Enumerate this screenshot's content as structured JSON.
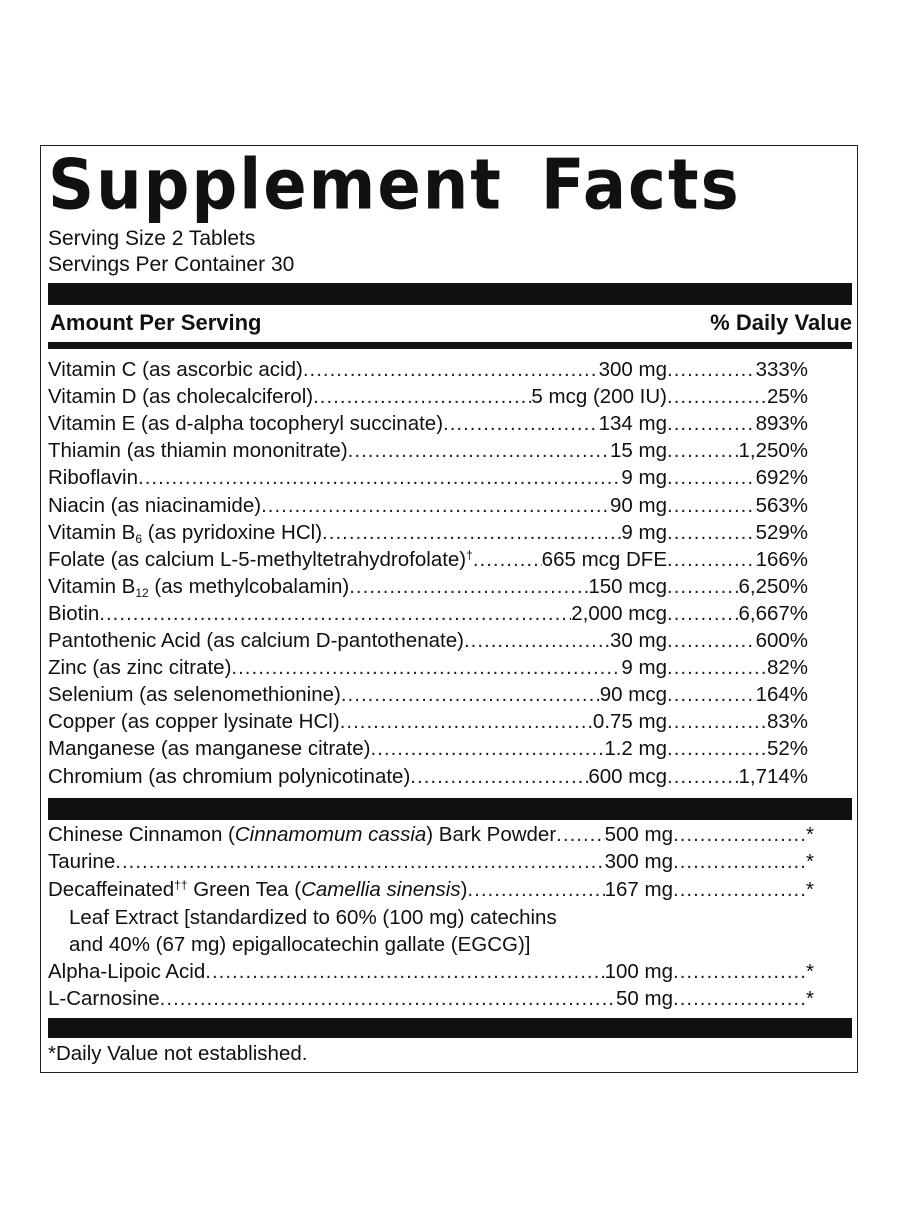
{
  "label": {
    "title_word1": "Supplement",
    "title_word2": "Facts",
    "serving_size": "Serving Size 2 Tablets",
    "servings_per_container": "Servings Per Container 30",
    "header_left": "Amount Per Serving",
    "header_right": "% Daily Value",
    "footnote": "*Daily Value not established."
  },
  "vitamins": [
    {
      "name": "Vitamin C (as ascorbic acid)",
      "amount": "300 mg",
      "dv": "333%"
    },
    {
      "name": "Vitamin D (as cholecalciferol)",
      "amount": "5 mcg (200 IU)",
      "dv": "25%"
    },
    {
      "name": "Vitamin E (as d-alpha tocopheryl succinate)",
      "amount": "134 mg",
      "dv": "893%"
    },
    {
      "name": "Thiamin (as thiamin mononitrate)",
      "amount": "15 mg",
      "dv": "1,250%"
    },
    {
      "name": "Riboflavin",
      "amount": "9 mg",
      "dv": "692%"
    },
    {
      "name": "Niacin (as niacinamide)",
      "amount": "90 mg",
      "dv": "563%"
    },
    {
      "name_pre": "Vitamin B",
      "name_sub": "6",
      "name_post": " (as pyridoxine HCl)",
      "amount": "9 mg",
      "dv": "529%"
    },
    {
      "name_pre": "Folate (as calcium L-5-methyltetrahydrofolate)",
      "name_sup": "†",
      "name_post": "",
      "amount": "665 mcg DFE",
      "dv": "166%"
    },
    {
      "name_pre": "Vitamin B",
      "name_sub": "12",
      "name_post": " (as methylcobalamin)",
      "amount": "150 mcg",
      "dv": "6,250%"
    },
    {
      "name": "Biotin",
      "amount": "2,000 mcg",
      "dv": "6,667%"
    },
    {
      "name": "Pantothenic Acid (as calcium D-pantothenate)",
      "amount": "30 mg",
      "dv": "600%"
    },
    {
      "name": "Zinc (as zinc citrate)",
      "amount": "9 mg",
      "dv": "82%"
    },
    {
      "name": "Selenium (as selenomethionine)",
      "amount": "90 mcg",
      "dv": "164%"
    },
    {
      "name": "Copper (as copper lysinate HCl)",
      "amount": "0.75 mg",
      "dv": "83%"
    },
    {
      "name": "Manganese (as manganese citrate)",
      "amount": "1.2 mg",
      "dv": "52%"
    },
    {
      "name": "Chromium (as chromium polynicotinate)",
      "amount": "600 mcg",
      "dv": "1,714%"
    }
  ],
  "others": [
    {
      "pre": "Chinese Cinnamon (",
      "ital": "Cinnamomum cassia",
      "post": ") Bark Powder",
      "amount": "500 mg",
      "dv": "*"
    },
    {
      "pre": "Taurine",
      "amount": "300 mg",
      "dv": "*"
    },
    {
      "pre": "Decaffeinated",
      "sup": "††",
      "mid": " Green Tea (",
      "ital": "Camellia sinensis",
      "post": ")",
      "amount": "167 mg",
      "dv": "*"
    },
    {
      "pre": "Alpha-Lipoic Acid",
      "amount": "100 mg",
      "dv": "*"
    },
    {
      "pre": "L-Carnosine",
      "amount": "50 mg",
      "dv": "*"
    }
  ],
  "green_tea_continuation": [
    "Leaf Extract [standardized to 60% (100 mg) catechins",
    "and 40% (67 mg) epigallocatechin gallate (EGCG)]"
  ]
}
